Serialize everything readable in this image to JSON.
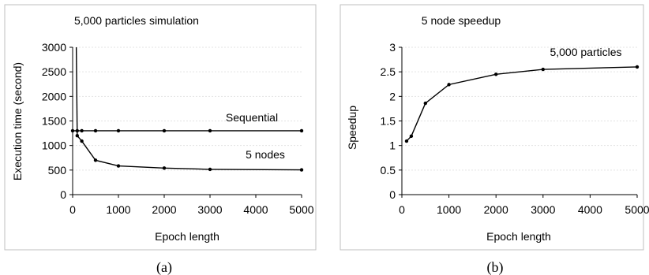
{
  "chart_data": [
    {
      "type": "line",
      "panel_label": "(a)",
      "title": "5,000 particles simulation",
      "xlabel": "Epoch length",
      "ylabel": "Execution time (second)",
      "xlim": [
        0,
        5000
      ],
      "ylim": [
        0,
        3000
      ],
      "xticks": [
        0,
        1000,
        2000,
        3000,
        4000,
        5000
      ],
      "yticks": [
        0,
        500,
        1000,
        1500,
        2000,
        2500,
        3000
      ],
      "grid": true,
      "legend": "none",
      "series": [
        {
          "name": "Sequential",
          "x": [
            0,
            100,
            200,
            500,
            1000,
            2000,
            3000,
            5000
          ],
          "y": [
            1300,
            1300,
            1300,
            1300,
            1300,
            1300,
            1300,
            1300
          ]
        },
        {
          "name": "5 nodes",
          "x": [
            100,
            200,
            500,
            1000,
            2000,
            3000,
            5000
          ],
          "y": [
            1200,
            1090,
            700,
            585,
            540,
            515,
            505
          ]
        }
      ],
      "spike": {
        "x": [
          80,
          100
        ],
        "y": [
          3000,
          1200
        ]
      }
    },
    {
      "type": "line",
      "panel_label": "(b)",
      "title": "5 node speedup",
      "xlabel": "Epoch length",
      "ylabel": "Speedup",
      "xlim": [
        0,
        5000
      ],
      "ylim": [
        0,
        3
      ],
      "xticks": [
        0,
        1000,
        2000,
        3000,
        4000,
        5000
      ],
      "yticks": [
        0,
        0.5,
        1,
        1.5,
        2,
        2.5,
        3
      ],
      "grid": true,
      "legend": "none",
      "series": [
        {
          "name": "5,000 particles",
          "x": [
            100,
            200,
            500,
            1000,
            2000,
            3000,
            5000
          ],
          "y": [
            1.09,
            1.19,
            1.86,
            2.24,
            2.45,
            2.55,
            2.6
          ]
        }
      ]
    }
  ]
}
